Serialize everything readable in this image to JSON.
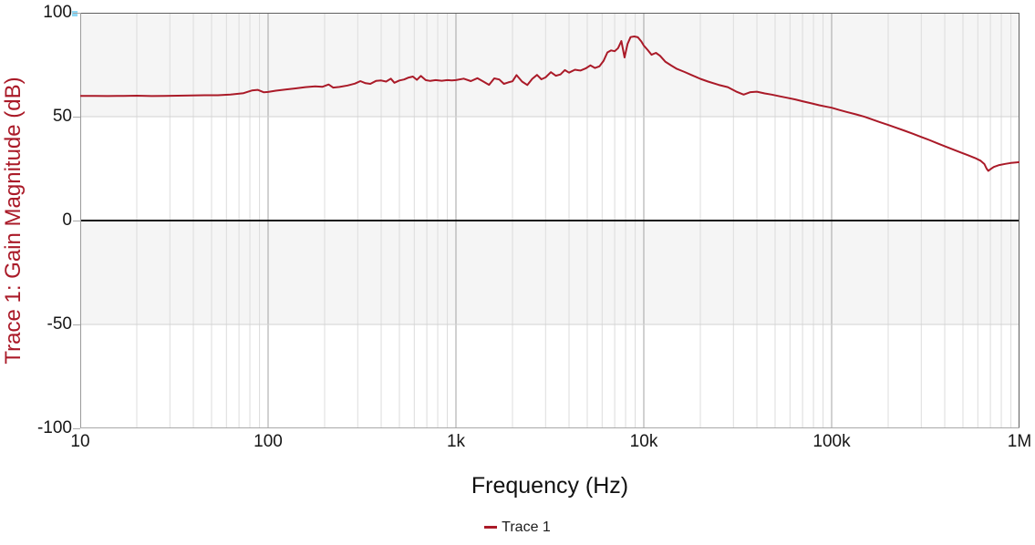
{
  "figure": {
    "y_axis_title": "Trace 1: Gain Magnitude (dB)",
    "x_axis_title": "Frequency (Hz)"
  },
  "legend": {
    "items": [
      {
        "label": "Trace 1",
        "color": "#aa1a28"
      }
    ]
  },
  "colors": {
    "trace": "#aa1a28",
    "axis_title_red": "#aa1a28",
    "band": "#f5f5f5",
    "minor_grid": "#dcdcdc",
    "major_grid": "#a3a3a3",
    "h_grid": "#d2d2d2",
    "zero_line": "#141414",
    "border_dark": "#5f5f5f",
    "border_light": "#a8a8a8",
    "text": "#161616",
    "corner_marker": "#8fd8f4"
  },
  "chart_data": {
    "type": "line",
    "title": "",
    "xlabel": "Frequency (Hz)",
    "ylabel": "Trace 1: Gain Magnitude (dB)",
    "xscale": "log",
    "xlim": [
      10,
      1000000
    ],
    "ylim": [
      -100,
      100
    ],
    "grid": true,
    "legend_position": "bottom-center",
    "bands": [
      [
        100,
        50
      ],
      [
        0,
        -50
      ]
    ],
    "x_ticks": [
      {
        "v": 10,
        "label": "10"
      },
      {
        "v": 100,
        "label": "100"
      },
      {
        "v": 1000,
        "label": "1k"
      },
      {
        "v": 10000,
        "label": "10k"
      },
      {
        "v": 100000,
        "label": "100k"
      },
      {
        "v": 1000000,
        "label": "1M"
      }
    ],
    "y_ticks": [
      {
        "v": 100,
        "label": "100"
      },
      {
        "v": 50,
        "label": "50"
      },
      {
        "v": 0,
        "label": "0"
      },
      {
        "v": -50,
        "label": "-50"
      },
      {
        "v": -100,
        "label": "-100"
      }
    ],
    "series": [
      {
        "name": "Trace 1",
        "color": "#aa1a28",
        "points": [
          [
            10,
            60
          ],
          [
            12,
            60
          ],
          [
            14,
            59.9
          ],
          [
            17,
            60
          ],
          [
            20,
            60.1
          ],
          [
            24,
            59.9
          ],
          [
            28,
            60
          ],
          [
            33,
            60.1
          ],
          [
            39,
            60.2
          ],
          [
            46,
            60.3
          ],
          [
            54,
            60.3
          ],
          [
            63,
            60.6
          ],
          [
            74,
            61.3
          ],
          [
            82,
            62.6
          ],
          [
            88,
            62.9
          ],
          [
            95,
            61.7
          ],
          [
            100,
            61.9
          ],
          [
            110,
            62.5
          ],
          [
            125,
            63.1
          ],
          [
            140,
            63.6
          ],
          [
            158,
            64.2
          ],
          [
            178,
            64.6
          ],
          [
            195,
            64.4
          ],
          [
            210,
            65.5
          ],
          [
            222,
            64.0
          ],
          [
            240,
            64.3
          ],
          [
            265,
            65.0
          ],
          [
            290,
            65.9
          ],
          [
            310,
            67.1
          ],
          [
            330,
            66.1
          ],
          [
            350,
            65.8
          ],
          [
            375,
            67.2
          ],
          [
            400,
            67.4
          ],
          [
            425,
            66.9
          ],
          [
            450,
            68.3
          ],
          [
            470,
            66.3
          ],
          [
            500,
            67.4
          ],
          [
            530,
            67.9
          ],
          [
            560,
            68.8
          ],
          [
            590,
            69.3
          ],
          [
            620,
            67.7
          ],
          [
            650,
            69.6
          ],
          [
            690,
            67.6
          ],
          [
            730,
            67.2
          ],
          [
            780,
            67.6
          ],
          [
            840,
            67.3
          ],
          [
            900,
            67.6
          ],
          [
            950,
            67.4
          ],
          [
            1000,
            67.6
          ],
          [
            1100,
            68.3
          ],
          [
            1200,
            67.1
          ],
          [
            1300,
            68.5
          ],
          [
            1400,
            66.9
          ],
          [
            1500,
            65.3
          ],
          [
            1600,
            68.4
          ],
          [
            1700,
            67.9
          ],
          [
            1800,
            65.8
          ],
          [
            1900,
            66.5
          ],
          [
            2000,
            67.0
          ],
          [
            2100,
            70.0
          ],
          [
            2250,
            66.9
          ],
          [
            2400,
            65.2
          ],
          [
            2550,
            68.2
          ],
          [
            2700,
            70.1
          ],
          [
            2850,
            68.0
          ],
          [
            3000,
            68.9
          ],
          [
            3200,
            71.4
          ],
          [
            3400,
            69.7
          ],
          [
            3600,
            70.3
          ],
          [
            3800,
            72.4
          ],
          [
            4000,
            71.2
          ],
          [
            4300,
            72.6
          ],
          [
            4600,
            72.2
          ],
          [
            4900,
            73.2
          ],
          [
            5200,
            74.7
          ],
          [
            5500,
            73.4
          ],
          [
            5800,
            74.2
          ],
          [
            6100,
            76.8
          ],
          [
            6400,
            80.9
          ],
          [
            6700,
            81.9
          ],
          [
            7000,
            81.5
          ],
          [
            7300,
            83.0
          ],
          [
            7600,
            86.4
          ],
          [
            7900,
            78.5
          ],
          [
            8200,
            85.0
          ],
          [
            8500,
            88.3
          ],
          [
            8900,
            88.6
          ],
          [
            9300,
            88.2
          ],
          [
            9700,
            86.2
          ],
          [
            10000,
            84.2
          ],
          [
            10500,
            82.0
          ],
          [
            11000,
            79.8
          ],
          [
            11600,
            80.7
          ],
          [
            12200,
            79.3
          ],
          [
            13000,
            76.5
          ],
          [
            14000,
            74.6
          ],
          [
            15000,
            73.0
          ],
          [
            16500,
            71.5
          ],
          [
            18000,
            70.0
          ],
          [
            20000,
            68.2
          ],
          [
            22000,
            66.9
          ],
          [
            25000,
            65.3
          ],
          [
            28000,
            64.2
          ],
          [
            31000,
            62.1
          ],
          [
            34000,
            60.6
          ],
          [
            37000,
            61.8
          ],
          [
            40000,
            62.0
          ],
          [
            44000,
            61.2
          ],
          [
            48000,
            60.6
          ],
          [
            53000,
            59.8
          ],
          [
            58000,
            59.1
          ],
          [
            64000,
            58.3
          ],
          [
            70000,
            57.4
          ],
          [
            78000,
            56.4
          ],
          [
            86000,
            55.5
          ],
          [
            95000,
            54.7
          ],
          [
            100000,
            54.3
          ],
          [
            110000,
            53.2
          ],
          [
            120000,
            52.3
          ],
          [
            135000,
            51.1
          ],
          [
            150000,
            49.9
          ],
          [
            165000,
            48.6
          ],
          [
            180000,
            47.4
          ],
          [
            200000,
            46.0
          ],
          [
            220000,
            44.7
          ],
          [
            245000,
            43.2
          ],
          [
            270000,
            41.8
          ],
          [
            300000,
            40.2
          ],
          [
            330000,
            38.8
          ],
          [
            365000,
            37.2
          ],
          [
            400000,
            35.8
          ],
          [
            440000,
            34.3
          ],
          [
            480000,
            33.0
          ],
          [
            530000,
            31.5
          ],
          [
            580000,
            30.1
          ],
          [
            620000,
            28.8
          ],
          [
            650000,
            27.2
          ],
          [
            668000,
            25.0
          ],
          [
            682000,
            23.9
          ],
          [
            700000,
            24.7
          ],
          [
            730000,
            25.8
          ],
          [
            780000,
            26.7
          ],
          [
            840000,
            27.3
          ],
          [
            900000,
            27.7
          ],
          [
            960000,
            28.0
          ],
          [
            1000000,
            28.1
          ]
        ]
      }
    ]
  }
}
